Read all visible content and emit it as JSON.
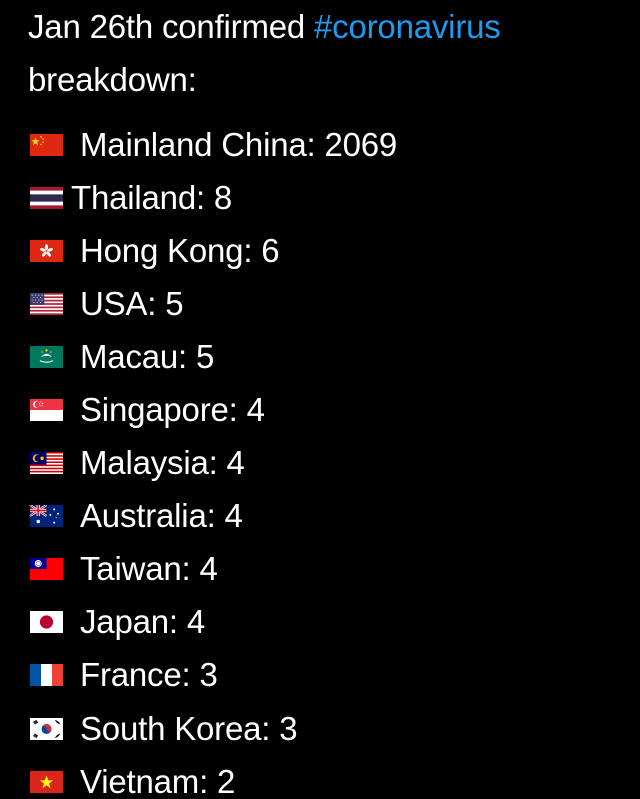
{
  "tweet": {
    "line1_prefix": "Jan 26th confirmed ",
    "hashtag": "#coronavirus",
    "line2": "breakdown:"
  },
  "entries": [
    {
      "flag": "china-flag-icon",
      "text": "Mainland China: 2069"
    },
    {
      "flag": "thailand-flag-icon",
      "text": "Thailand: 8"
    },
    {
      "flag": "hong-kong-flag-icon",
      "text": "Hong Kong: 6"
    },
    {
      "flag": "usa-flag-icon",
      "text": "USA: 5"
    },
    {
      "flag": "macau-flag-icon",
      "text": "Macau: 5"
    },
    {
      "flag": "singapore-flag-icon",
      "text": "Singapore: 4"
    },
    {
      "flag": "malaysia-flag-icon",
      "text": "Malaysia: 4"
    },
    {
      "flag": "australia-flag-icon",
      "text": "Australia: 4"
    },
    {
      "flag": "taiwan-flag-icon",
      "text": "Taiwan: 4"
    },
    {
      "flag": "japan-flag-icon",
      "text": "Japan: 4"
    },
    {
      "flag": "france-flag-icon",
      "text": "France: 3"
    },
    {
      "flag": "south-korea-flag-icon",
      "text": "South Korea: 3"
    },
    {
      "flag": "vietnam-flag-icon",
      "text": "Vietnam: 2"
    }
  ],
  "colors": {
    "background": "#000000",
    "text": "#ffffff",
    "hashtag": "#1d9bf0"
  }
}
